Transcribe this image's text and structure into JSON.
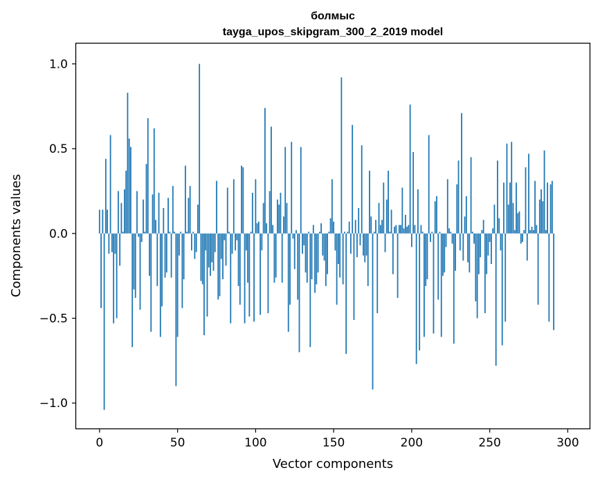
{
  "chart_data": {
    "type": "bar",
    "title": "болмыс",
    "subtitle": "tayga_upos_skipgram_300_2_2019 model",
    "xlabel": "Vector components",
    "ylabel": "Components values",
    "xlim": [
      -15,
      314
    ],
    "ylim": [
      -1.15,
      1.12
    ],
    "xticks": [
      0,
      50,
      100,
      150,
      200,
      250,
      300
    ],
    "xtick_labels": [
      "0",
      "50",
      "100",
      "150",
      "200",
      "250",
      "300"
    ],
    "yticks": [
      -1.0,
      -0.5,
      0.0,
      0.5,
      1.0
    ],
    "ytick_labels": [
      "−1.0",
      "−0.5",
      "0.0",
      "0.5",
      "1.0"
    ],
    "bar_color": "#1f77b4",
    "grid": false,
    "x_start": 0,
    "values": [
      0.14,
      -0.44,
      0.14,
      -1.04,
      0.44,
      0.14,
      -0.12,
      0.58,
      -0.11,
      -0.53,
      -0.12,
      -0.5,
      0.25,
      -0.19,
      0.18,
      0.01,
      0.26,
      0.37,
      0.83,
      0.56,
      0.51,
      -0.67,
      -0.33,
      -0.38,
      0.25,
      -0.02,
      -0.45,
      -0.05,
      0.2,
      0.01,
      0.41,
      0.68,
      -0.25,
      -0.58,
      0.23,
      0.62,
      0.08,
      -0.31,
      0.24,
      -0.61,
      -0.43,
      0.15,
      -0.26,
      -0.23,
      0.21,
      0.01,
      -0.26,
      0.28,
      0.01,
      -0.9,
      -0.61,
      -0.13,
      0.01,
      -0.44,
      -0.27,
      0.4,
      0.01,
      0.21,
      0.28,
      -0.1,
      0.01,
      -0.15,
      -0.11,
      0.17,
      1.0,
      -0.28,
      -0.3,
      -0.6,
      -0.1,
      -0.49,
      -0.2,
      -0.25,
      -0.17,
      -0.22,
      -0.11,
      0.31,
      -0.39,
      -0.37,
      -0.15,
      -0.27,
      -0.04,
      -0.19,
      0.27,
      0.01,
      -0.53,
      -0.12,
      0.32,
      -0.1,
      -0.04,
      -0.31,
      -0.42,
      0.4,
      0.39,
      -0.53,
      -0.1,
      -0.29,
      -0.49,
      0.01,
      0.24,
      -0.52,
      0.32,
      0.06,
      0.07,
      -0.48,
      -0.1,
      0.18,
      0.74,
      0.06,
      -0.47,
      0.25,
      0.63,
      0.05,
      -0.29,
      -0.26,
      0.2,
      0.17,
      0.24,
      -0.29,
      0.1,
      0.51,
      0.18,
      -0.58,
      -0.42,
      0.54,
      -0.03,
      -0.21,
      0.02,
      -0.39,
      -0.7,
      0.51,
      -0.12,
      -0.07,
      -0.23,
      -0.29,
      0.01,
      -0.67,
      -0.27,
      0.05,
      -0.35,
      -0.3,
      -0.23,
      0.01,
      0.06,
      -0.13,
      -0.16,
      -0.31,
      -0.24,
      0.01,
      0.09,
      0.32,
      0.07,
      -0.1,
      -0.42,
      -0.18,
      -0.26,
      0.92,
      -0.3,
      0.01,
      -0.71,
      0.01,
      0.07,
      -0.12,
      0.64,
      -0.51,
      0.08,
      -0.14,
      0.15,
      -0.07,
      0.52,
      -0.13,
      -0.17,
      -0.13,
      -0.31,
      0.37,
      0.1,
      -0.92,
      0.01,
      0.08,
      -0.47,
      0.18,
      0.05,
      0.08,
      0.3,
      -0.11,
      0.2,
      0.37,
      0.01,
      0.14,
      -0.24,
      0.04,
      0.05,
      -0.38,
      0.05,
      0.05,
      0.27,
      0.03,
      0.11,
      0.04,
      0.05,
      0.76,
      -0.08,
      0.48,
      0.05,
      -0.77,
      0.26,
      -0.69,
      0.05,
      0.01,
      -0.61,
      -0.31,
      -0.27,
      0.58,
      -0.05,
      0.01,
      -0.59,
      0.19,
      0.22,
      -0.39,
      0.01,
      -0.61,
      -0.25,
      -0.23,
      -0.08,
      0.32,
      0.03,
      0.01,
      -0.06,
      -0.65,
      -0.22,
      0.29,
      0.43,
      -0.1,
      0.71,
      -0.16,
      0.1,
      0.22,
      -0.17,
      -0.23,
      0.45,
      0.01,
      -0.06,
      -0.4,
      -0.5,
      -0.24,
      -0.14,
      0.02,
      0.08,
      -0.47,
      -0.24,
      -0.13,
      -0.05,
      -0.18,
      0.03,
      0.17,
      -0.78,
      0.43,
      0.09,
      -0.1,
      -0.66,
      0.3,
      -0.52,
      0.53,
      0.17,
      0.3,
      0.54,
      0.18,
      0.02,
      0.3,
      0.12,
      0.13,
      -0.06,
      -0.05,
      0.02,
      0.39,
      -0.16,
      0.47,
      0.02,
      0.04,
      0.02,
      0.31,
      0.05,
      -0.42,
      0.2,
      0.26,
      0.19,
      0.49,
      0.02,
      0.3,
      -0.52,
      0.29,
      0.31,
      -0.57
    ]
  }
}
